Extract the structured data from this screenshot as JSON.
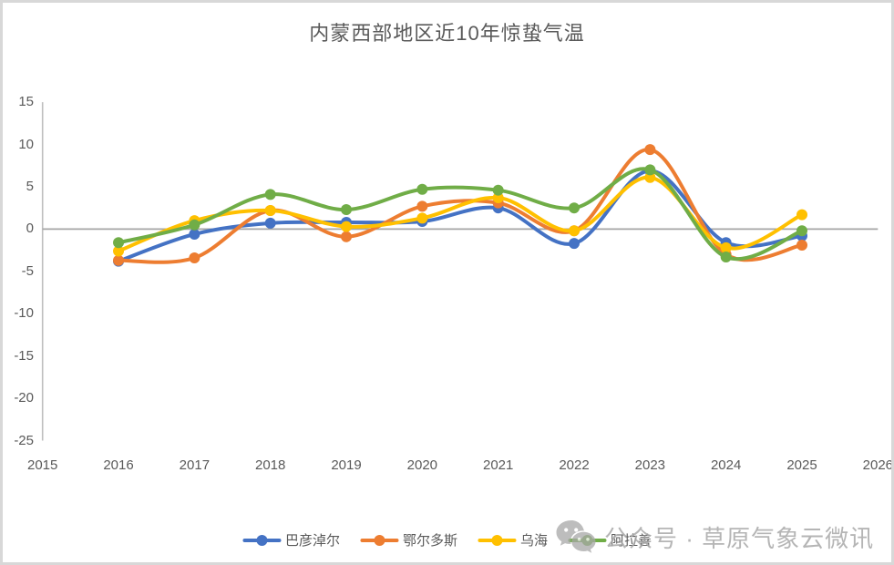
{
  "chart_data": {
    "type": "line",
    "title": "内蒙西部地区近10年惊蛰气温",
    "x": [
      2016,
      2017,
      2018,
      2019,
      2020,
      2021,
      2022,
      2023,
      2024,
      2025
    ],
    "x_axis_ticks": [
      "2015",
      "2016",
      "2017",
      "2018",
      "2019",
      "2020",
      "2021",
      "2022",
      "2023",
      "2024",
      "2025",
      "2026"
    ],
    "y_axis_ticks": [
      "15",
      "10",
      "5",
      "0",
      "-5",
      "-10",
      "-15",
      "-20",
      "-25"
    ],
    "xlim": [
      2015,
      2026
    ],
    "ylim": [
      -25,
      15
    ],
    "grid": "zero-line-only",
    "legend_position": "bottom",
    "axis_color": "#BFBFBF",
    "zero_line_color": "#A6A6A6",
    "text_color": "#595959",
    "series": [
      {
        "name": "巴彦淖尔",
        "color": "#4472C4",
        "values": [
          -3.8,
          -0.6,
          0.7,
          0.8,
          0.9,
          2.5,
          -1.7,
          6.9,
          -1.6,
          -0.8
        ]
      },
      {
        "name": "鄂尔多斯",
        "color": "#ED7D31",
        "values": [
          -3.7,
          -3.4,
          2.2,
          -0.9,
          2.7,
          3.1,
          -0.2,
          9.4,
          -3.0,
          -1.9
        ]
      },
      {
        "name": "乌海",
        "color": "#FFC000",
        "values": [
          -2.6,
          1.0,
          2.2,
          0.3,
          1.3,
          3.7,
          -0.2,
          6.1,
          -2.2,
          1.7
        ]
      },
      {
        "name": "阿拉善",
        "color": "#70AD47",
        "values": [
          -1.6,
          0.5,
          4.1,
          2.3,
          4.7,
          4.6,
          2.5,
          7.0,
          -3.3,
          -0.2
        ]
      }
    ]
  },
  "watermark": {
    "icon": "wechat-icon",
    "text": "公众号 · 草原气象云微讯"
  }
}
